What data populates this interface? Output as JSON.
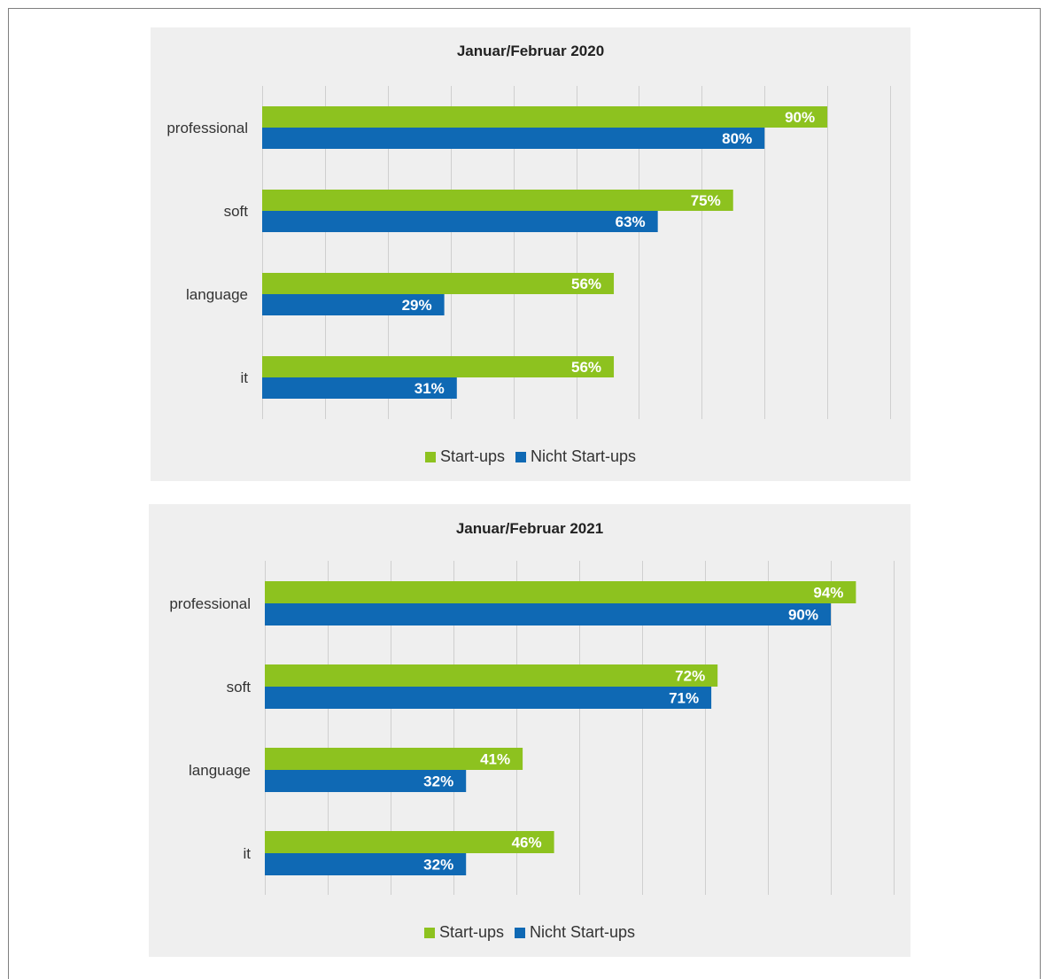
{
  "chart_data": [
    {
      "type": "bar",
      "orientation": "horizontal",
      "title": "Januar/Februar 2020",
      "categories": [
        "professional",
        "soft",
        "language",
        "it"
      ],
      "series": [
        {
          "name": "Start-ups",
          "values": [
            90,
            75,
            56,
            56
          ],
          "labels": [
            "90%",
            "75%",
            "56%",
            "56%"
          ]
        },
        {
          "name": "Nicht Start-ups",
          "values": [
            80,
            63,
            29,
            31
          ],
          "labels": [
            "80%",
            "63%",
            "29%",
            "31%"
          ]
        }
      ],
      "xlim": [
        0,
        100
      ],
      "grid": true,
      "legend_position": "bottom"
    },
    {
      "type": "bar",
      "orientation": "horizontal",
      "title": "Januar/Februar 2021",
      "categories": [
        "professional",
        "soft",
        "language",
        "it"
      ],
      "series": [
        {
          "name": "Start-ups",
          "values": [
            94,
            72,
            41,
            46
          ],
          "labels": [
            "94%",
            "72%",
            "41%",
            "46%"
          ]
        },
        {
          "name": "Nicht Start-ups",
          "values": [
            90,
            71,
            32,
            32
          ],
          "labels": [
            "90%",
            "71%",
            "32%",
            "32%"
          ]
        }
      ],
      "xlim": [
        0,
        100
      ],
      "grid": true,
      "legend_position": "bottom"
    }
  ],
  "colors": {
    "start_ups": "#8dc21f",
    "nicht_start_ups": "#0f69b4",
    "panel_background": "#efefef",
    "gridline": "#cfcfcf"
  }
}
